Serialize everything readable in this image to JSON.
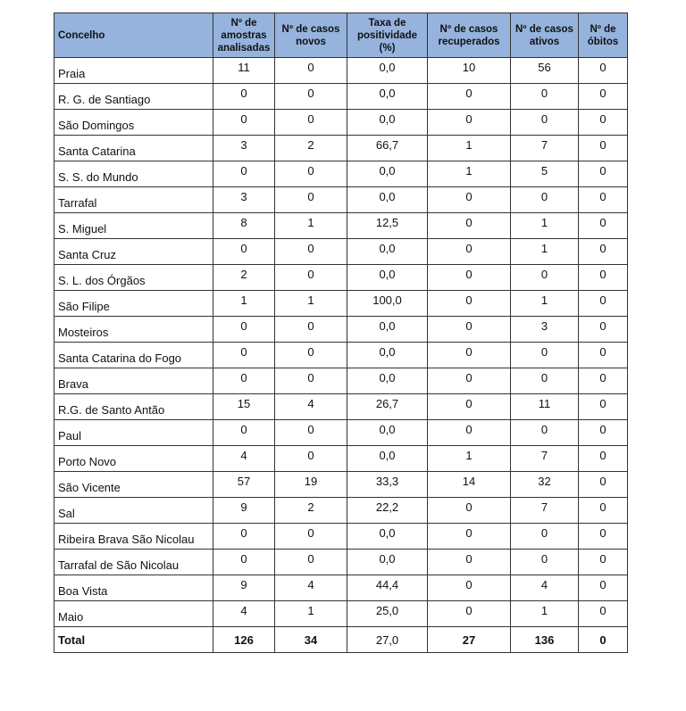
{
  "table": {
    "header": [
      "Concelho",
      "Nº de amostras analisadas",
      "Nº de casos novos",
      "Taxa de positividade (%)",
      "Nº de casos recuperados",
      "Nº de casos ativos",
      "Nº de óbitos"
    ],
    "rows": [
      [
        "Praia",
        11,
        0,
        "0,0",
        10,
        56,
        0
      ],
      [
        "R. G. de Santiago",
        0,
        0,
        "0,0",
        0,
        0,
        0
      ],
      [
        "São Domingos",
        0,
        0,
        "0,0",
        0,
        0,
        0
      ],
      [
        "Santa Catarina",
        3,
        2,
        "66,7",
        1,
        7,
        0
      ],
      [
        "S. S. do Mundo",
        0,
        0,
        "0,0",
        1,
        5,
        0
      ],
      [
        "Tarrafal",
        3,
        0,
        "0,0",
        0,
        0,
        0
      ],
      [
        "S. Miguel",
        8,
        1,
        "12,5",
        0,
        1,
        0
      ],
      [
        "Santa Cruz",
        0,
        0,
        "0,0",
        0,
        1,
        0
      ],
      [
        "S. L. dos Órgãos",
        2,
        0,
        "0,0",
        0,
        0,
        0
      ],
      [
        "São Filipe",
        1,
        1,
        "100,0",
        0,
        1,
        0
      ],
      [
        "Mosteiros",
        0,
        0,
        "0,0",
        0,
        3,
        0
      ],
      [
        "Santa Catarina do Fogo",
        0,
        0,
        "0,0",
        0,
        0,
        0
      ],
      [
        "Brava",
        0,
        0,
        "0,0",
        0,
        0,
        0
      ],
      [
        "R.G. de Santo Antão",
        15,
        4,
        "26,7",
        0,
        11,
        0
      ],
      [
        "Paul",
        0,
        0,
        "0,0",
        0,
        0,
        0
      ],
      [
        "Porto Novo",
        4,
        0,
        "0,0",
        1,
        7,
        0
      ],
      [
        "São Vicente",
        57,
        19,
        "33,3",
        14,
        32,
        0
      ],
      [
        "Sal",
        9,
        2,
        "22,2",
        0,
        7,
        0
      ],
      [
        "Ribeira Brava São Nicolau",
        0,
        0,
        "0,0",
        0,
        0,
        0
      ],
      [
        "Tarrafal de São Nicolau",
        0,
        0,
        "0,0",
        0,
        0,
        0
      ],
      [
        "Boa Vista",
        9,
        4,
        "44,4",
        0,
        4,
        0
      ],
      [
        "Maio",
        4,
        1,
        "25,0",
        0,
        1,
        0
      ]
    ],
    "total": [
      "Total",
      126,
      34,
      "27,0",
      27,
      136,
      0
    ]
  }
}
